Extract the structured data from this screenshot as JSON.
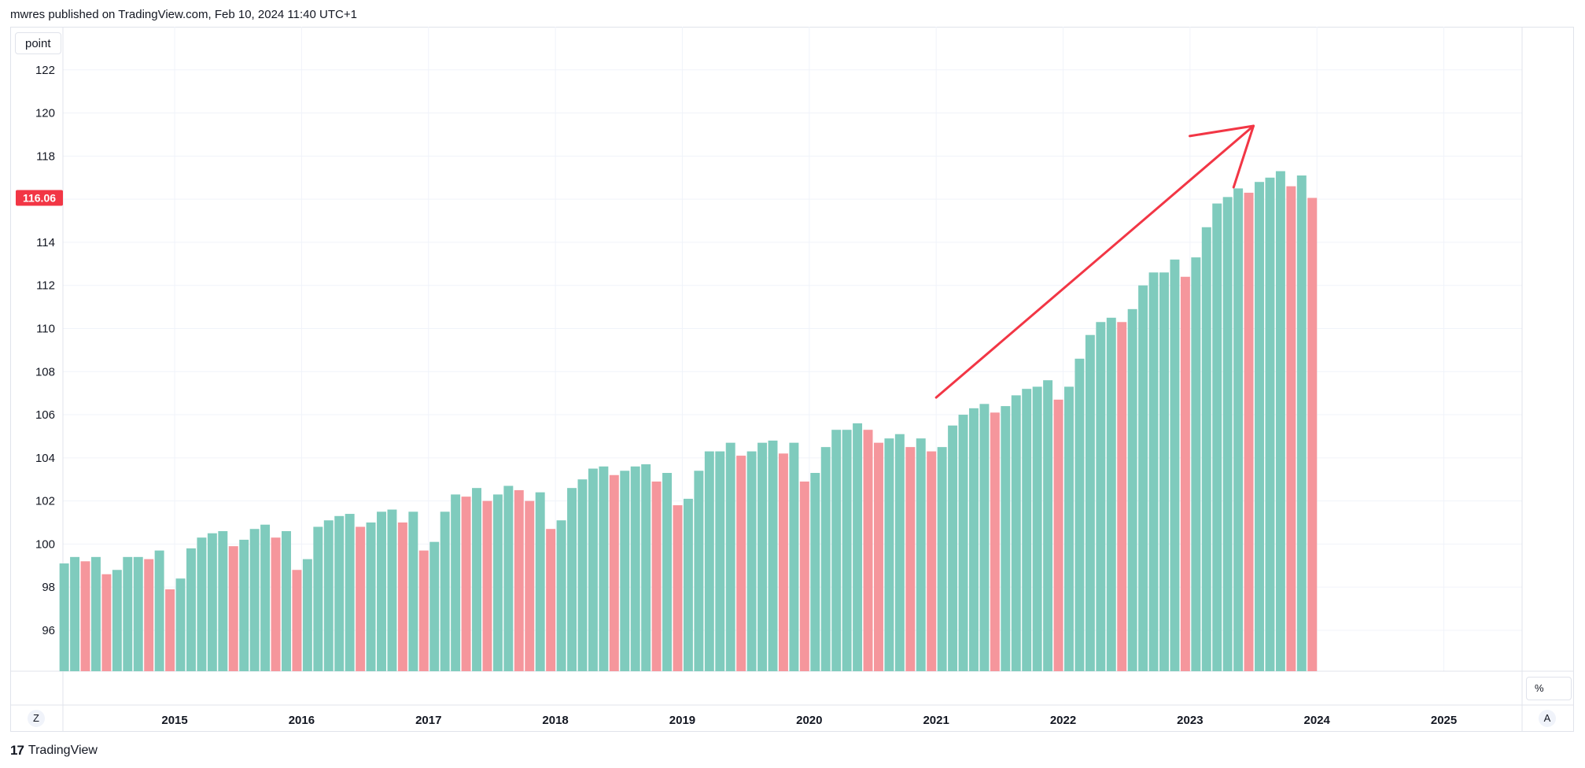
{
  "header": {
    "attribution": "mwres published on TradingView.com, Feb 10, 2024 11:40 UTC+1"
  },
  "series_label": "point",
  "last_price_label": "116.06",
  "controls": {
    "zoom_label": "Z",
    "auto_label": "A",
    "percent_label": "%"
  },
  "footer": {
    "brand": "TradingView",
    "logo_mark": "17"
  },
  "colors": {
    "up": "#7fcbbd",
    "down": "#f5969c",
    "arrow": "#f23645",
    "badge": "#f23645",
    "grid": "#f0f3fa"
  },
  "chart_data": {
    "type": "bar",
    "y_ticks": [
      "96",
      "98",
      "100",
      "102",
      "104",
      "106",
      "108",
      "110",
      "112",
      "114",
      "116",
      "118",
      "120",
      "122"
    ],
    "ylim": [
      94.1,
      124
    ],
    "x_ticks": [
      {
        "label": "2015",
        "year": 2015
      },
      {
        "label": "2016",
        "year": 2016
      },
      {
        "label": "2017",
        "year": 2017
      },
      {
        "label": "2018",
        "year": 2018
      },
      {
        "label": "2019",
        "year": 2019
      },
      {
        "label": "2020",
        "year": 2020
      },
      {
        "label": "2021",
        "year": 2021
      },
      {
        "label": "2022",
        "year": 2022
      },
      {
        "label": "2023",
        "year": 2023
      },
      {
        "label": "2024",
        "year": 2024
      },
      {
        "label": "2025",
        "year": 2025
      }
    ],
    "start_month": "2014-02",
    "values": [
      99.1,
      99.4,
      99.2,
      99.4,
      98.6,
      98.8,
      99.4,
      99.4,
      99.3,
      99.7,
      97.9,
      98.4,
      99.8,
      100.3,
      100.5,
      100.6,
      99.9,
      100.2,
      100.7,
      100.9,
      100.3,
      100.6,
      98.8,
      99.3,
      100.8,
      101.1,
      101.3,
      101.4,
      100.8,
      101.0,
      101.5,
      101.6,
      101.0,
      101.5,
      99.7,
      100.1,
      101.5,
      102.3,
      102.2,
      102.6,
      102.0,
      102.3,
      102.7,
      102.5,
      102.0,
      102.4,
      100.7,
      101.1,
      102.6,
      103.0,
      103.5,
      103.6,
      103.2,
      103.4,
      103.6,
      103.7,
      102.9,
      103.3,
      101.8,
      102.1,
      103.4,
      104.3,
      104.3,
      104.7,
      104.1,
      104.3,
      104.7,
      104.8,
      104.2,
      104.7,
      102.9,
      103.3,
      104.5,
      105.3,
      105.3,
      105.6,
      105.3,
      104.7,
      104.9,
      105.1,
      104.5,
      104.9,
      104.3,
      104.5,
      105.5,
      106.0,
      106.3,
      106.5,
      106.1,
      106.4,
      106.9,
      107.2,
      107.3,
      107.6,
      106.7,
      107.3,
      108.6,
      109.7,
      110.3,
      110.5,
      110.3,
      110.9,
      112.0,
      112.6,
      112.6,
      113.2,
      112.4,
      113.3,
      114.7,
      115.8,
      116.1,
      116.5,
      116.3,
      116.8,
      117.0,
      117.3,
      116.6,
      117.1,
      116.06
    ],
    "annotation": {
      "type": "arrow",
      "from": {
        "month": "2021-01",
        "y": 106.8
      },
      "to": {
        "month": "2023-07",
        "y": 119.4
      }
    }
  }
}
